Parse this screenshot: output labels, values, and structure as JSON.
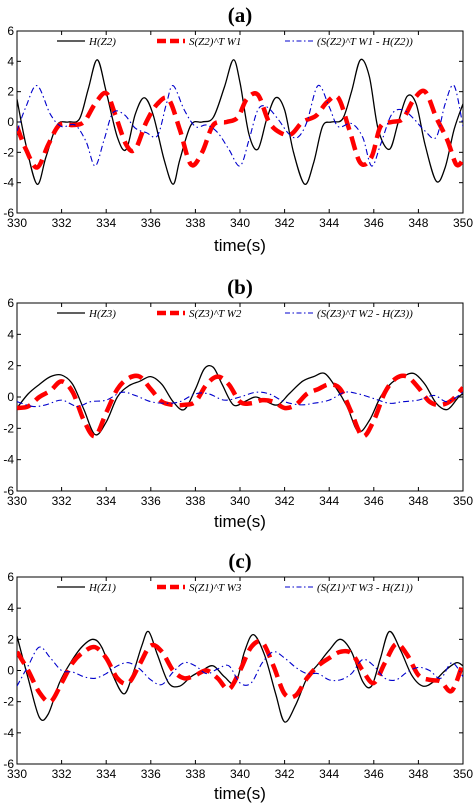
{
  "colors": {
    "h": "#000000",
    "s": "#ff0000",
    "diff": "#0000cc",
    "axis": "#000000"
  },
  "chart_data": [
    {
      "type": "line",
      "title": "(a)",
      "xlabel": "time(s)",
      "ylabel": "",
      "xlim": [
        330,
        350
      ],
      "ylim": [
        -6,
        6
      ],
      "xticks": [
        "330",
        "332",
        "334",
        "336",
        "338",
        "340",
        "342",
        "344",
        "346",
        "348",
        "350"
      ],
      "yticks": [
        "6",
        "4",
        "2",
        "0",
        "-2",
        "-4",
        "-6"
      ],
      "grid": false,
      "legend": "top",
      "series": [
        {
          "name": "H(Z2)",
          "style": "solid",
          "x": [
            330,
            330.4,
            330.9,
            331.3,
            331.8,
            332.3,
            332.8,
            333.2,
            333.6,
            334.0,
            334.5,
            334.9,
            335.3,
            335.7,
            336.1,
            336.6,
            337.0,
            337.3,
            337.8,
            338.3,
            338.8,
            339.3,
            339.7,
            340.0,
            340.4,
            340.8,
            341.2,
            341.6,
            342.0,
            342.4,
            342.9,
            343.3,
            343.7,
            344.1,
            344.6,
            345.0,
            345.4,
            345.8,
            346.2,
            346.7,
            347.1,
            347.5,
            347.9,
            348.3,
            348.8,
            349.2,
            349.6,
            350
          ],
          "y": [
            1.5,
            -1.5,
            -4.1,
            -2.3,
            -0.2,
            0,
            0.2,
            2.2,
            4.1,
            2.0,
            -1.0,
            -1.8,
            0.5,
            1.6,
            0.5,
            -2.5,
            -4.1,
            -2.5,
            -0.2,
            0,
            0.3,
            2.3,
            4.1,
            2.6,
            -0.8,
            -1.8,
            0.2,
            1.6,
            0.8,
            -2.0,
            -4.1,
            -2.7,
            -0.3,
            0,
            0.2,
            2.0,
            4.1,
            3.0,
            -0.5,
            -1.8,
            0,
            1.7,
            1.2,
            -1.5,
            -3.9,
            -3.0,
            -0.5,
            1.2
          ]
        },
        {
          "name": "S(Z2)^T W1",
          "style": "dashed",
          "x": [
            330,
            330.4,
            330.9,
            331.4,
            331.9,
            332.5,
            333.0,
            333.5,
            334.0,
            334.4,
            334.9,
            335.3,
            335.8,
            336.3,
            336.8,
            337.3,
            337.8,
            338.3,
            338.8,
            339.4,
            339.9,
            340.3,
            340.8,
            341.3,
            341.8,
            342.3,
            342.8,
            343.4,
            343.9,
            344.4,
            344.9,
            345.4,
            345.9,
            346.3,
            346.8,
            347.3,
            347.8,
            348.3,
            348.8,
            349.3,
            349.7,
            350
          ],
          "y": [
            -0.3,
            -1.8,
            -3.0,
            -1.5,
            -0.2,
            -0.2,
            0,
            1.2,
            1.9,
            0.5,
            -1.5,
            -1.8,
            0,
            1.2,
            1.5,
            -0.5,
            -2.8,
            -2.0,
            -0.2,
            0,
            0.3,
            1.5,
            1.8,
            0,
            -0.7,
            -0.8,
            0,
            0.4,
            1.3,
            1.6,
            -0.5,
            -2.7,
            -2.3,
            -0.3,
            0,
            0.2,
            1.5,
            2.0,
            0.3,
            -1.2,
            -2.8,
            -2.5
          ]
        },
        {
          "name": "(S(Z2)^T W1 - H(Z2))",
          "style": "dashdot",
          "x": [
            330,
            330.4,
            330.9,
            331.5,
            332.0,
            332.6,
            333.1,
            333.5,
            333.9,
            334.3,
            334.8,
            335.3,
            335.8,
            336.3,
            336.7,
            337.0,
            337.5,
            338.0,
            338.5,
            339.0,
            339.5,
            340.0,
            340.4,
            340.8,
            341.2,
            341.7,
            342.2,
            342.6,
            343.0,
            343.5,
            344.0,
            344.4,
            345.0,
            345.5,
            345.9,
            346.3,
            346.8,
            347.3,
            347.8,
            348.3,
            348.8,
            349.2,
            349.6,
            350
          ],
          "y": [
            -0.6,
            1.0,
            2.4,
            0.5,
            -0.3,
            -0.2,
            -1.3,
            -2.9,
            -1.2,
            0.6,
            0.5,
            -0.4,
            -0.7,
            -0.9,
            1.2,
            2.4,
            0.8,
            -0.3,
            -0.2,
            -0.7,
            -1.8,
            -2.9,
            -1.2,
            0.8,
            1.0,
            0.2,
            -0.8,
            -1.0,
            0,
            2.4,
            1.0,
            -0.3,
            -0.1,
            -1.0,
            -2.9,
            -1.5,
            0.5,
            0.8,
            0.2,
            -0.6,
            -1.0,
            1.2,
            2.4,
            -0.3
          ]
        }
      ]
    },
    {
      "type": "line",
      "title": "(b)",
      "xlabel": "time(s)",
      "ylabel": "",
      "xlim": [
        330,
        350
      ],
      "ylim": [
        -6,
        6
      ],
      "xticks": [
        "330",
        "332",
        "334",
        "336",
        "338",
        "340",
        "342",
        "344",
        "346",
        "348",
        "350"
      ],
      "yticks": [
        "6",
        "4",
        "2",
        "0",
        "-2",
        "-4",
        "-6"
      ],
      "grid": false,
      "legend": "top",
      "series": [
        {
          "name": "H(Z3)",
          "style": "solid",
          "x": [
            330,
            330.5,
            331.0,
            331.5,
            332.0,
            332.5,
            333.0,
            333.5,
            334.0,
            334.5,
            335.0,
            335.5,
            336.0,
            336.5,
            337.0,
            337.5,
            338.0,
            338.4,
            338.8,
            339.2,
            339.7,
            340.2,
            340.7,
            341.2,
            341.7,
            342.2,
            342.8,
            343.3,
            343.8,
            344.3,
            344.8,
            345.3,
            345.8,
            346.3,
            346.8,
            347.3,
            347.8,
            348.3,
            348.8,
            349.3,
            349.8,
            350
          ],
          "y": [
            -0.7,
            0.2,
            0.8,
            1.3,
            1.4,
            0.8,
            -0.8,
            -2.4,
            -1.6,
            0,
            0.7,
            1.0,
            1.3,
            0.8,
            -0.3,
            -0.8,
            0.5,
            1.8,
            1.9,
            0.8,
            -0.5,
            -0.3,
            0,
            -0.3,
            -0.5,
            0.2,
            1.0,
            1.3,
            1.5,
            0.6,
            -0.6,
            -2.2,
            -1.5,
            0,
            0.9,
            1.3,
            1.5,
            0.8,
            -0.4,
            -0.8,
            0,
            0.2
          ]
        },
        {
          "name": "S(Z3)^T W2",
          "style": "dashed",
          "x": [
            330,
            330.5,
            331.0,
            331.5,
            332.0,
            332.5,
            333.0,
            333.5,
            334.0,
            334.5,
            335.0,
            335.5,
            336.0,
            336.5,
            337.0,
            337.5,
            338.0,
            338.5,
            339.0,
            339.5,
            340.0,
            340.5,
            341.0,
            341.5,
            342.0,
            342.5,
            343.0,
            343.5,
            344.0,
            344.5,
            345.0,
            345.5,
            346.0,
            346.5,
            347.0,
            347.5,
            348.0,
            348.5,
            349.0,
            349.5,
            350
          ],
          "y": [
            -0.7,
            -0.6,
            0,
            0.4,
            1.0,
            0.3,
            -1.5,
            -2.5,
            -1.0,
            0.5,
            1.2,
            1.3,
            0.5,
            -0.3,
            -0.5,
            -0.5,
            -0.3,
            0.8,
            1.3,
            0.8,
            -0.3,
            -0.4,
            -0.2,
            -0.3,
            -0.7,
            -0.5,
            0.2,
            0.5,
            0.8,
            0.5,
            -1.0,
            -2.5,
            -1.5,
            0.3,
            1.2,
            1.3,
            0.6,
            -0.3,
            -0.5,
            -0.2,
            0.6
          ]
        },
        {
          "name": "(S(Z3)^T W2 - H(Z3))",
          "style": "dashdot",
          "x": [
            330,
            330.7,
            331.3,
            332.0,
            332.7,
            333.3,
            334.0,
            334.7,
            335.3,
            336.0,
            336.7,
            337.3,
            338.0,
            338.6,
            339.3,
            340.0,
            340.7,
            341.3,
            342.0,
            342.7,
            343.3,
            344.0,
            344.7,
            345.3,
            346.0,
            346.7,
            347.3,
            348.0,
            348.7,
            349.3,
            350
          ],
          "y": [
            -0.3,
            -0.6,
            -0.5,
            -0.2,
            -0.6,
            -0.3,
            -0.2,
            0.3,
            0.1,
            -0.3,
            -0.4,
            -0.3,
            0.2,
            0.2,
            -0.2,
            0,
            0.3,
            0.2,
            -0.3,
            -0.5,
            -0.4,
            -0.2,
            0.3,
            0.2,
            -0.1,
            -0.4,
            -0.3,
            -0.2,
            0.1,
            -0.3,
            0.3
          ]
        }
      ]
    },
    {
      "type": "line",
      "title": "(c)",
      "xlabel": "time(s)",
      "ylabel": "",
      "xlim": [
        330,
        350
      ],
      "ylim": [
        -6,
        6
      ],
      "xticks": [
        "330",
        "332",
        "334",
        "336",
        "338",
        "340",
        "342",
        "344",
        "346",
        "348",
        "350"
      ],
      "yticks": [
        "6",
        "4",
        "2",
        "0",
        "-2",
        "-4",
        "-6"
      ],
      "grid": false,
      "legend": "top",
      "series": [
        {
          "name": "H(Z1)",
          "style": "solid",
          "x": [
            330,
            330.5,
            331.0,
            331.4,
            331.9,
            332.4,
            332.9,
            333.4,
            333.8,
            334.3,
            334.8,
            335.2,
            335.6,
            335.9,
            336.3,
            336.8,
            337.3,
            337.8,
            338.3,
            338.8,
            339.3,
            339.8,
            340.2,
            340.6,
            341.1,
            341.6,
            342.0,
            342.5,
            343.0,
            343.5,
            344.0,
            344.5,
            345.0,
            345.5,
            345.9,
            346.3,
            346.7,
            347.2,
            347.7,
            348.2,
            348.7,
            349.2,
            349.7,
            350
          ],
          "y": [
            2.2,
            -0.5,
            -3.0,
            -2.8,
            -0.8,
            0.5,
            1.5,
            2.0,
            1.5,
            -0.3,
            -1.5,
            -0.2,
            1.6,
            2.5,
            1.0,
            -0.8,
            -1.0,
            -0.4,
            0,
            0.3,
            -0.4,
            -0.8,
            1.2,
            2.3,
            1.0,
            -1.5,
            -3.3,
            -2.2,
            -0.5,
            0.4,
            1.3,
            2.0,
            1.2,
            -0.7,
            -1.0,
            0.8,
            2.5,
            1.3,
            -0.3,
            -1.0,
            -0.7,
            0,
            0.5,
            0.3
          ]
        },
        {
          "name": "S(Z1)^T W3",
          "style": "dashed",
          "x": [
            330,
            330.5,
            331.0,
            331.5,
            332.0,
            332.5,
            333.0,
            333.5,
            334.0,
            334.5,
            335.0,
            335.5,
            336.0,
            336.5,
            337.0,
            337.5,
            338.0,
            338.5,
            339.0,
            339.5,
            340.0,
            340.5,
            341.0,
            341.5,
            342.0,
            342.5,
            343.0,
            343.5,
            344.0,
            344.5,
            345.0,
            345.5,
            346.0,
            346.5,
            347.0,
            347.5,
            348.0,
            348.5,
            349.0,
            349.5,
            350
          ],
          "y": [
            1.2,
            0,
            -1.4,
            -2.0,
            -0.8,
            0.5,
            1.2,
            1.5,
            0.8,
            -0.5,
            -0.8,
            0.4,
            1.6,
            1.2,
            0,
            -0.5,
            -0.3,
            0,
            -0.5,
            -1.2,
            0,
            1.5,
            1.8,
            0.3,
            -1.5,
            -1.6,
            -0.5,
            0.3,
            0.8,
            1.2,
            1.1,
            0,
            -0.8,
            0.5,
            1.7,
            1.0,
            -0.3,
            -0.6,
            -0.7,
            -1.3,
            0.5
          ]
        },
        {
          "name": "(S(Z1)^T W3 - H(Z1))",
          "style": "dashdot",
          "x": [
            330,
            330.5,
            331.0,
            331.5,
            332.0,
            332.5,
            333.0,
            333.5,
            334.0,
            334.5,
            335.0,
            335.5,
            336.0,
            336.5,
            337.0,
            337.5,
            338.0,
            338.5,
            339.0,
            339.5,
            340.0,
            340.5,
            341.0,
            341.5,
            342.0,
            342.5,
            343.0,
            343.5,
            344.0,
            344.5,
            345.0,
            345.5,
            346.0,
            346.5,
            347.0,
            347.5,
            348.0,
            348.5,
            349.0,
            349.5,
            350
          ],
          "y": [
            -1.0,
            0.3,
            1.5,
            0.8,
            0,
            -0.1,
            -0.4,
            -0.5,
            -0.2,
            0.3,
            0.5,
            0.1,
            -0.6,
            -0.9,
            -0.1,
            0.5,
            0.3,
            -0.2,
            0.1,
            0.3,
            -0.8,
            -0.8,
            0.5,
            1.2,
            0.8,
            0.2,
            -0.2,
            -0.2,
            -0.6,
            -0.6,
            -0.2,
            0.7,
            0.3,
            -0.5,
            -0.6,
            -0.1,
            0.2,
            0,
            -0.5,
            0.5,
            -0.4
          ]
        }
      ]
    }
  ]
}
